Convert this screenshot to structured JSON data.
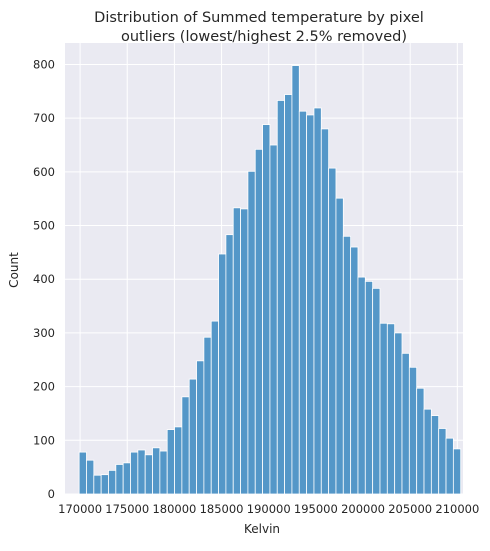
{
  "chart_data": {
    "type": "bar",
    "title_line1": "Distribution of Summed temperature by pixel",
    "title_line2": "outliers (lowest/highest 2.5% removed)",
    "xlabel": "Kelvin",
    "ylabel": "Count",
    "xlim": [
      168400,
      210600
    ],
    "ylim": [
      0,
      840
    ],
    "xticks": [
      170000,
      175000,
      180000,
      185000,
      190000,
      195000,
      200000,
      205000,
      210000
    ],
    "yticks": [
      0,
      100,
      200,
      300,
      400,
      500,
      600,
      700,
      800
    ],
    "grid": true,
    "background_color": "#eaeaf2",
    "bar_color": "#5497c8",
    "bin_start": 169900,
    "bin_width": 778,
    "values": [
      78,
      63,
      35,
      36,
      44,
      55,
      58,
      78,
      82,
      73,
      86,
      80,
      120,
      125,
      181,
      214,
      248,
      292,
      322,
      447,
      483,
      533,
      531,
      601,
      642,
      688,
      650,
      733,
      744,
      798,
      713,
      706,
      719,
      680,
      607,
      551,
      480,
      460,
      404,
      396,
      383,
      318,
      317,
      300,
      262,
      236,
      197,
      158,
      146,
      122,
      104,
      84
    ]
  }
}
